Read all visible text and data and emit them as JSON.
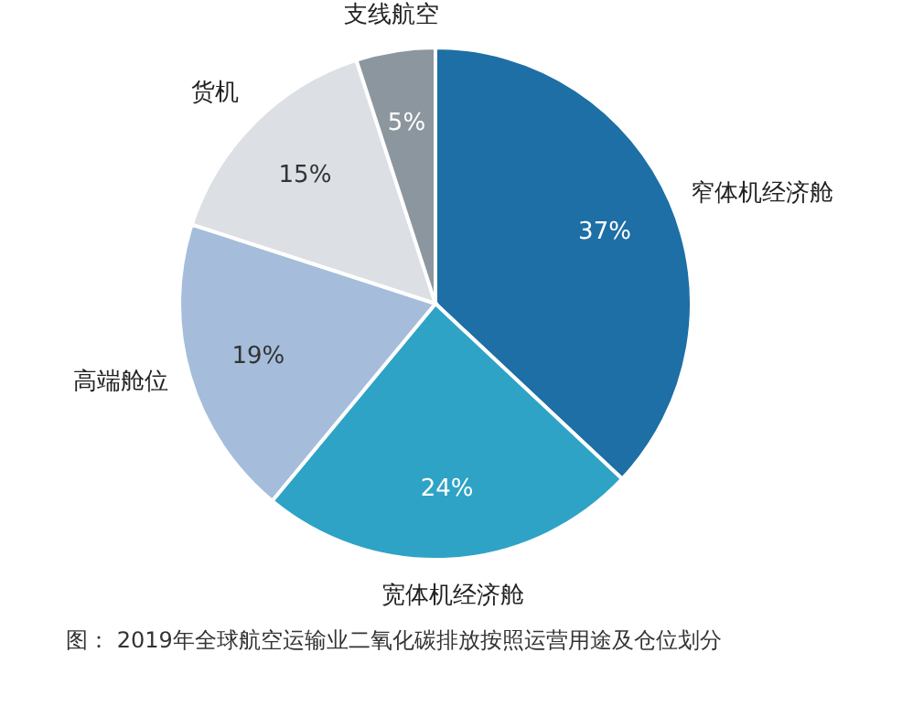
{
  "chart_data": {
    "type": "pie",
    "categories": [
      "窄体机经济舱",
      "宽体机经济舱",
      "高端舱位",
      "货机",
      "支线航空"
    ],
    "values": [
      37,
      24,
      19,
      15,
      5
    ],
    "value_labels": [
      "37%",
      "24%",
      "19%",
      "15%",
      "5%"
    ],
    "colors": [
      "#1d6fa5",
      "#2ea3c6",
      "#a5bddb",
      "#dcdfe4",
      "#8c969e"
    ],
    "annotations": [
      "图：  2019年全球航空运输业二氧化碳排放按照运营用途及仓位划分"
    ]
  }
}
